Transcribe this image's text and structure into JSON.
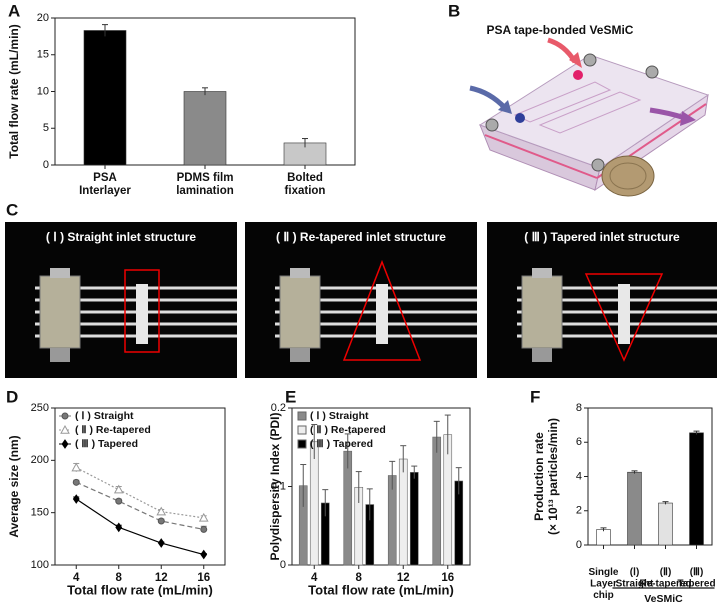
{
  "panel_b": {
    "label": "B",
    "caption": "PSA tape-bonded VeSMiC"
  },
  "panel_c": {
    "label": "C",
    "captions": [
      "( Ⅰ ) Straight inlet structure",
      "( Ⅱ ) Re-tapered inlet structure",
      "( Ⅲ ) Tapered inlet structure"
    ]
  },
  "chart_data": [
    {
      "type": "bar",
      "panel_label": "A",
      "ylabel": "Total flow rate (mL/min)",
      "categories": [
        "PSA\nInterlayer",
        "PDMS film\nlamination",
        "Bolted\nfixation"
      ],
      "values": [
        18.3,
        10.0,
        3.0
      ],
      "errors": [
        0.8,
        0.5,
        0.6
      ],
      "colors": [
        "#000000",
        "#8a8a8a",
        "#c8c8c8"
      ],
      "ylim": [
        0,
        20
      ],
      "yticks": [
        0,
        5,
        10,
        15,
        20
      ]
    },
    {
      "type": "line",
      "panel_label": "D",
      "ylabel": "Average size (nm)",
      "xlabel": "Total flow rate (mL/min)",
      "x": [
        4,
        8,
        12,
        16
      ],
      "xlim": [
        2,
        18
      ],
      "xticks": [
        4,
        8,
        12,
        16
      ],
      "ylim": [
        100,
        250
      ],
      "yticks": [
        100,
        150,
        200,
        250
      ],
      "legend": "upper left",
      "series": [
        {
          "name": "( Ⅰ ) Straight",
          "color": "#777777",
          "marker": "circle",
          "line_style": "dashed",
          "values": [
            179,
            161,
            142,
            134
          ],
          "errors": [
            2,
            2,
            2,
            3
          ]
        },
        {
          "name": "( Ⅱ ) Re-tapered",
          "color": "#999999",
          "marker": "triangle",
          "line_style": "dotted",
          "values": [
            193,
            172,
            151,
            145
          ],
          "errors": [
            4,
            3,
            2,
            2
          ]
        },
        {
          "name": "( Ⅲ ) Tapered",
          "color": "#000000",
          "marker": "diamond",
          "line_style": "solid",
          "values": [
            163,
            136,
            121,
            110
          ],
          "errors": [
            2,
            2,
            1,
            1
          ]
        }
      ]
    },
    {
      "type": "bar",
      "panel_label": "E",
      "ylabel": "Polydispersity Index (PDI)",
      "xlabel": "Total flow rate (mL/min)",
      "categories": [
        "4",
        "8",
        "12",
        "16"
      ],
      "ylim": [
        0,
        0.2
      ],
      "yticks": [
        0,
        0.1,
        0.2
      ],
      "legend": "upper left",
      "series": [
        {
          "name": "( Ⅰ ) Straight",
          "color": "#8a8a8a",
          "values": [
            0.101,
            0.145,
            0.114,
            0.163
          ],
          "errors": [
            0.027,
            0.022,
            0.018,
            0.02
          ]
        },
        {
          "name": "( Ⅱ ) Re-tapered",
          "color": "#eeeeee",
          "values": [
            0.157,
            0.099,
            0.135,
            0.166
          ],
          "errors": [
            0.022,
            0.02,
            0.017,
            0.025
          ]
        },
        {
          "name": "( Ⅲ ) Tapered",
          "color": "#000000",
          "values": [
            0.079,
            0.077,
            0.118,
            0.107
          ],
          "errors": [
            0.017,
            0.02,
            0.008,
            0.017
          ]
        }
      ]
    },
    {
      "type": "bar",
      "panel_label": "F",
      "ylabel": "Production rate\n(× 10¹³ particles/min)",
      "categories": [
        "Single\nLayer\nchip",
        "(Ⅰ)\nStraight",
        "(Ⅱ)\nRe-tapered",
        "(Ⅲ)\nTapered"
      ],
      "group_label": "VeSMiC",
      "values": [
        0.9,
        4.25,
        2.45,
        6.55
      ],
      "errors": [
        0.1,
        0.08,
        0.08,
        0.1
      ],
      "colors": [
        "#ffffff",
        "#8a8a8a",
        "#e2e2e2",
        "#000000"
      ],
      "ylim": [
        0,
        8
      ],
      "yticks": [
        0,
        2,
        4,
        6,
        8
      ]
    }
  ]
}
